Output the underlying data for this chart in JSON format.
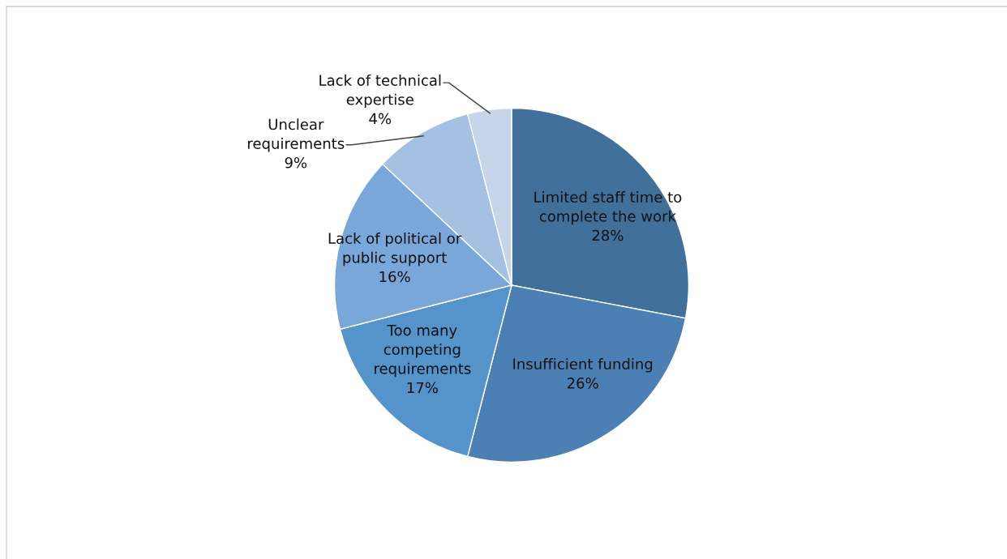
{
  "chart_data": {
    "type": "pie",
    "categories": [
      "Limited staff time to\ncomplete the work",
      "Insufficient funding",
      "Too many\ncompeting\nrequirements",
      "Lack of political or\npublic support",
      "Unclear\nrequirements",
      "Lack of technical\nexpertise"
    ],
    "values": [
      28,
      26,
      17,
      16,
      9,
      4
    ],
    "value_labels": [
      "28%",
      "26%",
      "17%",
      "16%",
      "9%",
      "4%"
    ],
    "colors": [
      "#41709b",
      "#4c80b5",
      "#5593cb",
      "#7aa7da",
      "#a6c0e3",
      "#c6d5ea"
    ],
    "legend": false
  }
}
